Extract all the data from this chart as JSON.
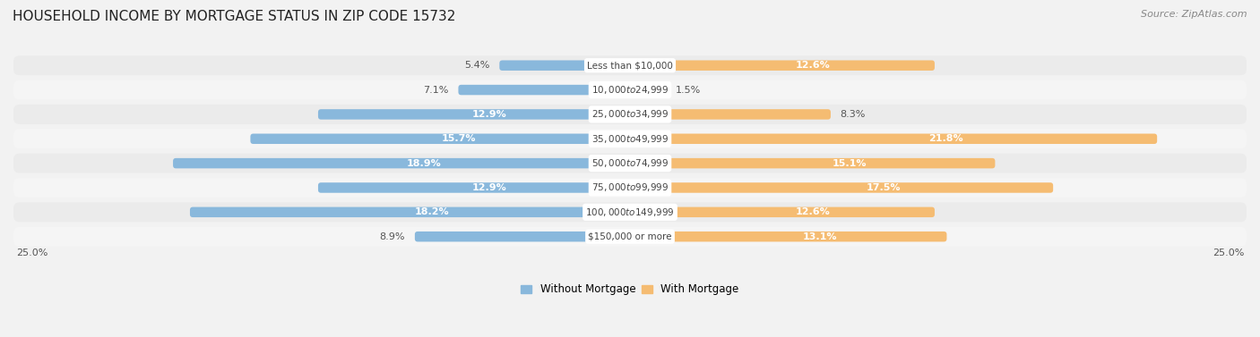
{
  "title": "HOUSEHOLD INCOME BY MORTGAGE STATUS IN ZIP CODE 15732",
  "source": "Source: ZipAtlas.com",
  "categories": [
    "Less than $10,000",
    "$10,000 to $24,999",
    "$25,000 to $34,999",
    "$35,000 to $49,999",
    "$50,000 to $74,999",
    "$75,000 to $99,999",
    "$100,000 to $149,999",
    "$150,000 or more"
  ],
  "without_mortgage": [
    5.4,
    7.1,
    12.9,
    15.7,
    18.9,
    12.9,
    18.2,
    8.9
  ],
  "with_mortgage": [
    12.6,
    1.5,
    8.3,
    21.8,
    15.1,
    17.5,
    12.6,
    13.1
  ],
  "color_without": "#89b8dc",
  "color_with": "#f5bc72",
  "bg_color": "#f2f2f2",
  "row_bg_even": "#ebebeb",
  "row_bg_odd": "#f5f5f5",
  "xlim": 25.0,
  "axis_label_left": "25.0%",
  "axis_label_right": "25.0%",
  "title_fontsize": 11,
  "source_fontsize": 8,
  "bar_label_fontsize": 8,
  "category_fontsize": 7.5,
  "inside_label_threshold": 9.5
}
